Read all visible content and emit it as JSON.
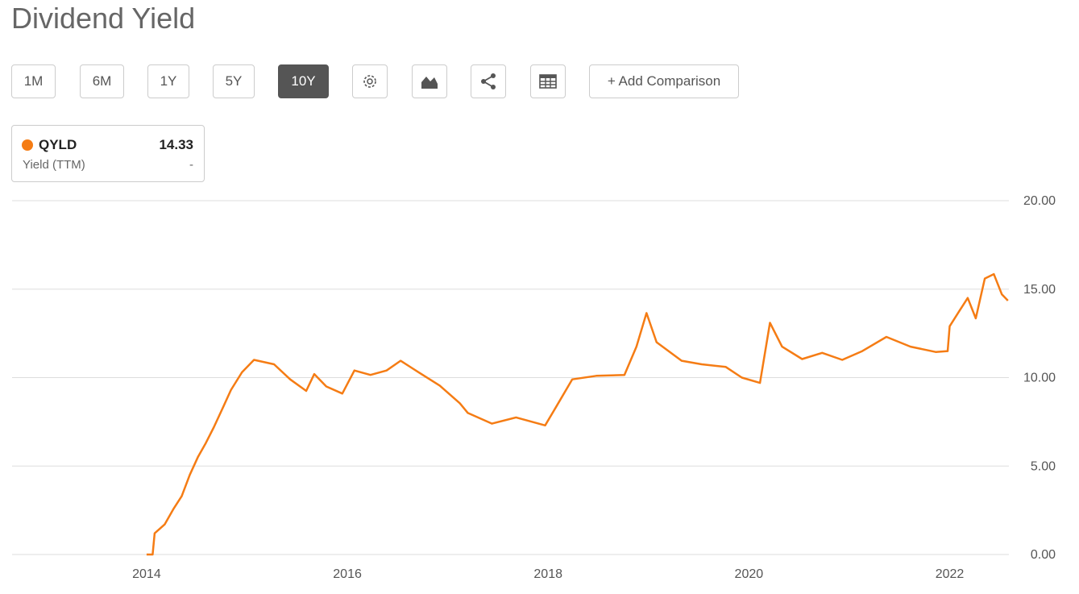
{
  "header": {
    "title": "Dividend Yield"
  },
  "toolbar": {
    "ranges": [
      "1M",
      "6M",
      "1Y",
      "5Y",
      "10Y"
    ],
    "active_range": "10Y",
    "add_comparison": "+ Add Comparison"
  },
  "legend": {
    "value": 14.33,
    "metric": "Yield (TTM)",
    "change": "-"
  },
  "chart_data": {
    "type": "line",
    "x": [
      2014.0,
      2014.06,
      2014.08,
      2014.18,
      2014.27,
      2014.35,
      2014.43,
      2014.51,
      2014.59,
      2014.67,
      2014.76,
      2014.84,
      2014.95,
      2015.07,
      2015.27,
      2015.43,
      2015.59,
      2015.67,
      2015.79,
      2015.95,
      2016.07,
      2016.23,
      2016.39,
      2016.53,
      2016.71,
      2016.92,
      2017.12,
      2017.2,
      2017.44,
      2017.68,
      2017.97,
      2018.08,
      2018.24,
      2018.48,
      2018.76,
      2018.88,
      2018.98,
      2019.08,
      2019.33,
      2019.53,
      2019.77,
      2019.93,
      2020.11,
      2020.21,
      2020.33,
      2020.53,
      2020.73,
      2020.93,
      2021.13,
      2021.37,
      2021.61,
      2021.86,
      2021.98,
      2022.0,
      2022.1,
      2022.18,
      2022.26,
      2022.35,
      2022.44,
      2022.52,
      2022.58
    ],
    "series": [
      {
        "name": "QYLD",
        "color": "#f57c14",
        "values": [
          0,
          0,
          1.2,
          1.7,
          2.6,
          3.3,
          4.5,
          5.5,
          6.3,
          7.2,
          8.3,
          9.3,
          10.3,
          11.0,
          10.75,
          9.9,
          9.25,
          10.2,
          9.5,
          9.1,
          10.4,
          10.15,
          10.4,
          10.95,
          10.3,
          9.55,
          8.55,
          8.0,
          7.4,
          7.75,
          7.3,
          8.35,
          9.9,
          10.1,
          10.15,
          11.75,
          13.65,
          12.0,
          10.95,
          10.75,
          10.6,
          10.0,
          9.7,
          13.1,
          11.75,
          11.05,
          11.4,
          11.0,
          11.5,
          12.3,
          11.75,
          11.45,
          11.5,
          12.9,
          13.8,
          14.5,
          13.35,
          15.6,
          15.85,
          14.7,
          14.35
        ]
      }
    ],
    "xlim": [
      2012.66,
      2022.59
    ],
    "ylim": [
      0,
      20
    ],
    "xticks": [
      2014,
      2016,
      2018,
      2020,
      2022
    ],
    "yticks": [
      {
        "value": 0,
        "label": "0.00"
      },
      {
        "value": 5,
        "label": "5.00"
      },
      {
        "value": 10,
        "label": "10.00"
      },
      {
        "value": 15,
        "label": "15.00"
      },
      {
        "value": 20,
        "label": "20.00"
      }
    ],
    "grid": true
  }
}
